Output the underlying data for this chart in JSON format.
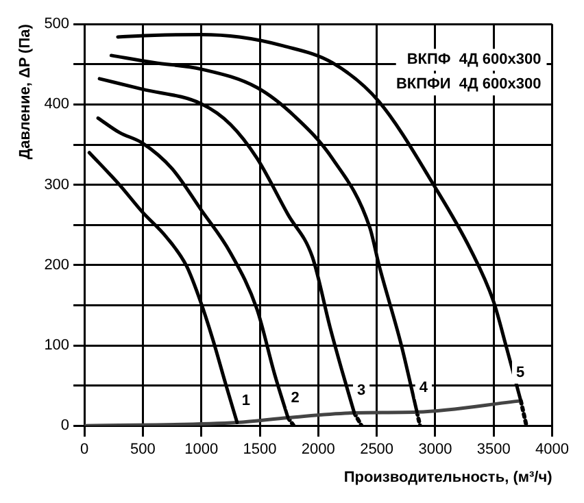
{
  "chart_data": {
    "type": "line",
    "xlabel": "Производительность, (м³/ч)",
    "ylabel": "Давление, ΔP (Па)",
    "xlim": [
      0,
      4000
    ],
    "xticks": [
      0,
      500,
      1000,
      1500,
      2000,
      2500,
      3000,
      3500,
      4000
    ],
    "ylim": [
      0,
      500
    ],
    "yticks": [
      0,
      {
        "value": 50,
        "label": null
      },
      100,
      {
        "value": 150,
        "label": null
      },
      200,
      {
        "value": 250,
        "label": null
      },
      300,
      {
        "value": 350,
        "label": null
      },
      400,
      {
        "value": 450,
        "label": null
      },
      500
    ],
    "grid": true,
    "legend": false,
    "marker": "none",
    "series": [
      {
        "color": "#000000",
        "line_style": "solid",
        "x": [
          42,
          300,
          496,
          700,
          873,
          997,
          1099,
          1212,
          1306
        ],
        "values": [
          340,
          300,
          266,
          235,
          199,
          153,
          107,
          50,
          4
        ]
      },
      {
        "color": "#000000",
        "line_style": "solid",
        "x": [
          117,
          300,
          495,
          750,
          997,
          1250,
          1476,
          1627,
          1741
        ],
        "values": [
          383,
          365,
          352,
          320,
          269,
          215,
          145,
          64,
          10
        ]
      },
      {
        "color": "#000000",
        "line_style": "solid",
        "x": [
          129,
          495,
          997,
          1250,
          1476,
          1741,
          1950,
          2100,
          2200,
          2308
        ],
        "values": [
          432,
          419,
          401,
          375,
          333,
          263,
          210,
          123,
          70,
          16
        ]
      },
      {
        "color": "#000000",
        "line_style": "solid",
        "x": [
          230,
          600,
          997,
          1476,
          1800,
          2119,
          2440,
          2521,
          2709,
          2844
        ],
        "values": [
          461,
          452,
          444,
          421,
          385,
          333,
          247,
          199,
          101,
          17
        ]
      },
      {
        "color": "#000000",
        "line_style": "solid",
        "x": [
          286,
          600,
          997,
          1326,
          1700,
          2119,
          2516,
          3007,
          3300,
          3498,
          3612,
          3732
        ],
        "values": [
          484,
          486,
          487,
          484,
          473,
          452,
          404,
          295,
          220,
          155,
          96,
          31
        ]
      },
      {
        "color": "#444444",
        "line_style": "solid",
        "x": [
          0,
          1306,
          1741,
          2308,
          2844,
          3732
        ],
        "values": [
          0,
          4,
          10,
          16,
          17,
          31
        ]
      },
      {
        "color": "#000000",
        "line_style": "dotted",
        "x": [
          1741,
          1790
        ],
        "values": [
          10,
          0
        ]
      },
      {
        "color": "#000000",
        "line_style": "dotted",
        "x": [
          2308,
          2370
        ],
        "values": [
          16,
          0
        ]
      },
      {
        "color": "#000000",
        "line_style": "dotted",
        "x": [
          2844,
          2870
        ],
        "values": [
          17,
          0
        ]
      },
      {
        "color": "#000000",
        "line_style": "dotted",
        "x": [
          3732,
          3780
        ],
        "values": [
          31,
          0
        ]
      }
    ],
    "annotations": [
      {
        "text": "1",
        "x": 1382,
        "y": 31
      },
      {
        "text": "2",
        "x": 1802,
        "y": 34
      },
      {
        "text": "3",
        "x": 2368,
        "y": 44
      },
      {
        "text": "4",
        "x": 2900,
        "y": 47
      },
      {
        "text": "5",
        "x": 3728,
        "y": 66
      },
      "ВКПФ  4Д 600x300",
      "ВКПФИ  4Д 600x300"
    ]
  }
}
